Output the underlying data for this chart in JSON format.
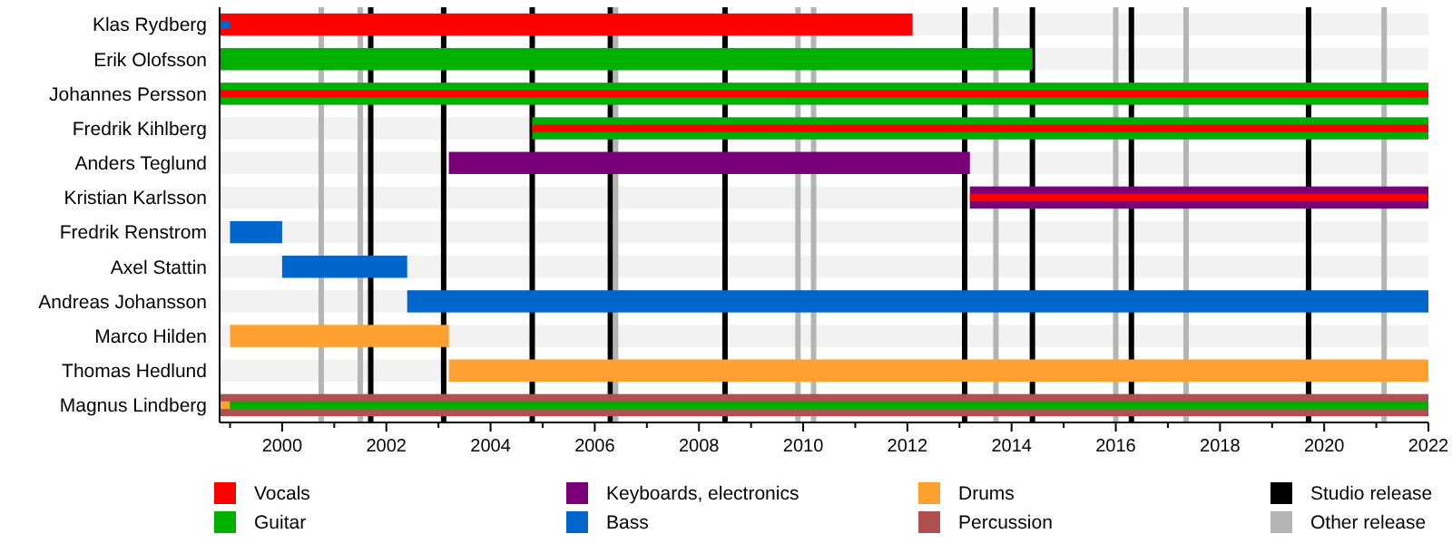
{
  "chart_data": {
    "type": "bar",
    "orientation": "horizontal",
    "categories": [
      "Klas Rydberg",
      "Erik Olofsson",
      "Johannes Persson",
      "Fredrik Kihlberg",
      "Anders Teglund",
      "Kristian Karlsson",
      "Fredrik Renstrom",
      "Axel Stattin",
      "Andreas Johansson",
      "Marco Hilden",
      "Thomas Hedlund",
      "Magnus Lindberg"
    ],
    "series": [
      {
        "name": "Vocals",
        "color": "#ff0000",
        "base": [
          1998.8,
          null,
          1998.8,
          2004.8,
          null,
          2013.2,
          null,
          null,
          null,
          null,
          null,
          null
        ],
        "values": [
          13.3,
          null,
          23.2,
          17.2,
          null,
          8.8,
          null,
          null,
          null,
          null,
          null,
          null
        ]
      },
      {
        "name": "Guitar",
        "color": "#00b000",
        "base": [
          null,
          1998.8,
          1998.8,
          2004.8,
          null,
          null,
          null,
          null,
          null,
          null,
          null,
          1999.0
        ],
        "values": [
          null,
          15.6,
          23.2,
          17.2,
          null,
          null,
          null,
          null,
          null,
          null,
          null,
          23.0
        ]
      },
      {
        "name": "Keyboards, electronics",
        "color": "#7a007a",
        "base": [
          null,
          null,
          null,
          null,
          2003.2,
          2013.2,
          null,
          null,
          null,
          null,
          null,
          null
        ],
        "values": [
          null,
          null,
          null,
          null,
          10.0,
          8.8,
          null,
          null,
          null,
          null,
          null,
          null
        ]
      },
      {
        "name": "Bass",
        "color": "#0066cc",
        "base": [
          1998.8,
          null,
          null,
          null,
          null,
          null,
          1999.0,
          2000.0,
          2002.4,
          null,
          null,
          null
        ],
        "values": [
          0.2,
          null,
          null,
          null,
          null,
          null,
          1.0,
          2.4,
          19.6,
          null,
          null,
          null
        ]
      },
      {
        "name": "Drums",
        "color": "#ffa030",
        "base": [
          null,
          null,
          null,
          null,
          null,
          null,
          null,
          null,
          null,
          1999.0,
          2003.2,
          1998.8
        ],
        "values": [
          null,
          null,
          null,
          null,
          null,
          null,
          null,
          null,
          null,
          4.2,
          18.8,
          0.2
        ]
      },
      {
        "name": "Percussion",
        "color": "#b05050",
        "base": [
          null,
          null,
          null,
          null,
          null,
          null,
          null,
          null,
          null,
          null,
          null,
          1998.8
        ],
        "values": [
          null,
          null,
          null,
          null,
          null,
          null,
          null,
          null,
          null,
          null,
          null,
          23.2
        ]
      }
    ],
    "xlim": [
      1998.8,
      2022
    ],
    "xticks": [
      {
        "value": 1999,
        "label": null
      },
      2000,
      {
        "value": 2001,
        "label": null
      },
      2002,
      {
        "value": 2003,
        "label": null
      },
      2004,
      {
        "value": 2005,
        "label": null
      },
      2006,
      {
        "value": 2007,
        "label": null
      },
      2008,
      {
        "value": 2009,
        "label": null
      },
      2010,
      {
        "value": 2011,
        "label": null
      },
      2012,
      {
        "value": 2013,
        "label": null
      },
      2014,
      {
        "value": 2015,
        "label": null
      },
      2016,
      {
        "value": 2017,
        "label": null
      },
      2018,
      {
        "value": 2019,
        "label": null
      },
      2020,
      {
        "value": 2021,
        "label": null
      },
      2022
    ],
    "ref_lines": [
      {
        "axis": "x",
        "value": 2001.7,
        "label": "Studio release",
        "color": "#000000"
      },
      {
        "axis": "x",
        "value": 2003.1,
        "color": "#000000"
      },
      {
        "axis": "x",
        "value": 2004.8,
        "color": "#000000"
      },
      {
        "axis": "x",
        "value": 2006.3,
        "color": "#000000"
      },
      {
        "axis": "x",
        "value": 2008.5,
        "color": "#000000"
      },
      {
        "axis": "x",
        "value": 2013.1,
        "color": "#000000"
      },
      {
        "axis": "x",
        "value": 2014.4,
        "color": "#000000"
      },
      {
        "axis": "x",
        "value": 2016.3,
        "color": "#000000"
      },
      {
        "axis": "x",
        "value": 2019.7,
        "color": "#000000"
      },
      {
        "axis": "x",
        "value": 2000.75,
        "label": "Other release",
        "color": "#b4b4b4"
      },
      {
        "axis": "x",
        "value": 2001.5,
        "color": "#b4b4b4"
      },
      {
        "axis": "x",
        "value": 2006.4,
        "color": "#b4b4b4"
      },
      {
        "axis": "x",
        "value": 2009.9,
        "color": "#b4b4b4"
      },
      {
        "axis": "x",
        "value": 2010.2,
        "color": "#b4b4b4"
      },
      {
        "axis": "x",
        "value": 2013.7,
        "color": "#b4b4b4"
      },
      {
        "axis": "x",
        "value": 2016.0,
        "color": "#b4b4b4"
      },
      {
        "axis": "x",
        "value": 2017.35,
        "color": "#b4b4b4"
      },
      {
        "axis": "x",
        "value": 2021.15,
        "color": "#b4b4b4"
      }
    ],
    "legend": "bottom"
  }
}
